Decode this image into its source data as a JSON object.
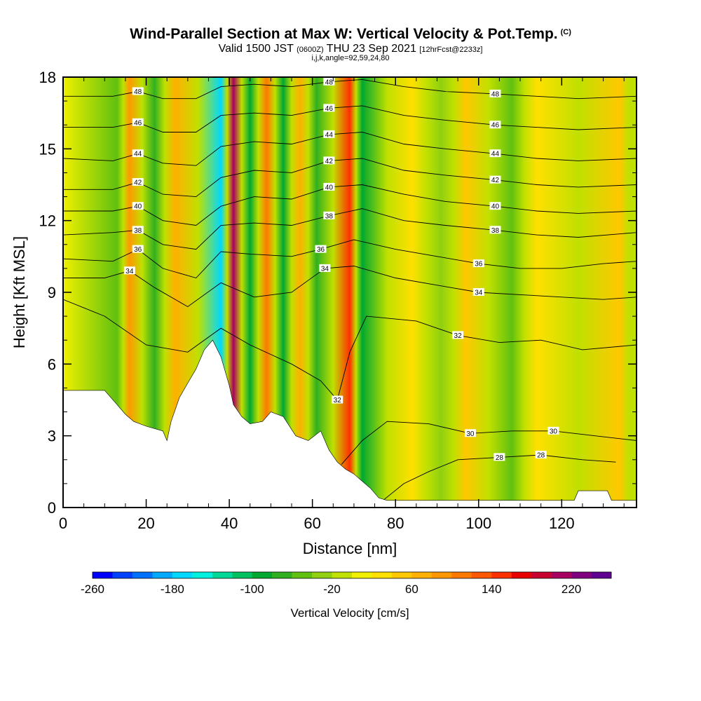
{
  "title": {
    "main": "Wind-Parallel Section at Max W: Vertical Velocity & Pot.Temp.",
    "mark": "(C)",
    "valid_pre": "Valid 1500 JST ",
    "valid_utc": "(0600Z)",
    "valid_post": " THU 23 Sep 2021 ",
    "forecast": "[12hrFcst@2233z]",
    "indices": "i,j,k,angle=92,59,24,80"
  },
  "chart_data": {
    "type": "heatmap",
    "xlabel": "Distance [nm]",
    "ylabel": "Height [Kft MSL]",
    "xlim": [
      0,
      138
    ],
    "ylim": [
      0,
      18
    ],
    "x_ticks": [
      "0",
      "20",
      "40",
      "60",
      "80",
      "100",
      "120"
    ],
    "y_ticks": [
      "0",
      "3",
      "6",
      "9",
      "12",
      "15",
      "18"
    ],
    "colorbar": {
      "label": "Vertical Velocity [cm/s]",
      "range": [
        -260,
        260
      ],
      "ticks": [
        "-260",
        "-180",
        "-100",
        "-20",
        "60",
        "140",
        "220"
      ],
      "colors": [
        "#0000ff",
        "#0040ff",
        "#0070ff",
        "#00a8ff",
        "#00d8ff",
        "#00f0e0",
        "#00d898",
        "#00c060",
        "#00a830",
        "#30b020",
        "#60c010",
        "#90d010",
        "#c0e000",
        "#f0f000",
        "#ffe000",
        "#ffc800",
        "#ffb000",
        "#ff9800",
        "#ff7800",
        "#ff5800",
        "#ff3000",
        "#e80000",
        "#c80030",
        "#a80060",
        "#800080",
        "#600090"
      ]
    },
    "terrain_kft": [
      [
        0,
        4.9
      ],
      [
        10,
        4.9
      ],
      [
        13,
        4.3
      ],
      [
        15,
        3.9
      ],
      [
        17,
        3.6
      ],
      [
        20,
        3.4
      ],
      [
        24,
        3.2
      ],
      [
        25,
        2.8
      ],
      [
        26,
        3.6
      ],
      [
        28,
        4.6
      ],
      [
        30,
        5.2
      ],
      [
        32,
        5.8
      ],
      [
        34,
        6.6
      ],
      [
        36,
        7.0
      ],
      [
        38,
        6.3
      ],
      [
        40,
        5.1
      ],
      [
        41,
        4.3
      ],
      [
        43,
        3.8
      ],
      [
        45,
        3.5
      ],
      [
        48,
        3.6
      ],
      [
        50,
        4.0
      ],
      [
        53,
        3.8
      ],
      [
        56,
        3.0
      ],
      [
        59,
        2.8
      ],
      [
        62,
        3.2
      ],
      [
        64,
        2.4
      ],
      [
        66,
        1.9
      ],
      [
        68,
        1.6
      ],
      [
        70,
        1.4
      ],
      [
        72,
        1.1
      ],
      [
        74,
        0.8
      ],
      [
        76,
        0.4
      ],
      [
        78,
        0.3
      ],
      [
        123,
        0.3
      ],
      [
        124,
        0.7
      ],
      [
        131,
        0.7
      ],
      [
        132,
        0.3
      ],
      [
        138,
        0.3
      ]
    ],
    "updrafts": [
      {
        "x": 16,
        "w": 90
      },
      {
        "x": 27,
        "w": 60
      },
      {
        "x": 41,
        "w": 200
      },
      {
        "x": 49,
        "w": 110
      },
      {
        "x": 57,
        "w": 70
      },
      {
        "x": 69,
        "w": 140
      },
      {
        "x": 84,
        "w": 40
      },
      {
        "x": 97,
        "w": 50
      },
      {
        "x": 114,
        "w": 40
      },
      {
        "x": 134,
        "w": 50
      }
    ],
    "downdrafts": [
      {
        "x": 13,
        "w": -60
      },
      {
        "x": 22,
        "w": -70
      },
      {
        "x": 38,
        "w": -180
      },
      {
        "x": 45,
        "w": -90
      },
      {
        "x": 53,
        "w": -100
      },
      {
        "x": 61,
        "w": -80
      },
      {
        "x": 72,
        "w": -100
      },
      {
        "x": 91,
        "w": -40
      },
      {
        "x": 108,
        "w": -50
      }
    ],
    "theta_contours": [
      {
        "label": "28",
        "points": [
          [
            77,
            0.3
          ],
          [
            82,
            1.0
          ],
          [
            88,
            1.5
          ],
          [
            95,
            2.0
          ],
          [
            105,
            2.1
          ],
          [
            115,
            2.2
          ],
          [
            125,
            2.0
          ],
          [
            133,
            1.9
          ]
        ]
      },
      {
        "label": "30",
        "points": [
          [
            67,
            1.8
          ],
          [
            72,
            2.8
          ],
          [
            78,
            3.6
          ],
          [
            88,
            3.5
          ],
          [
            98,
            3.1
          ],
          [
            108,
            3.2
          ],
          [
            118,
            3.2
          ],
          [
            128,
            3.0
          ],
          [
            138,
            2.8
          ]
        ]
      },
      {
        "label": "32",
        "points": [
          [
            0,
            8.7
          ],
          [
            10,
            8.0
          ],
          [
            20,
            6.8
          ],
          [
            30,
            6.5
          ],
          [
            38,
            7.5
          ],
          [
            45,
            6.8
          ],
          [
            55,
            6.0
          ],
          [
            62,
            5.3
          ],
          [
            66,
            4.5
          ],
          [
            69,
            6.5
          ],
          [
            73,
            8.0
          ],
          [
            85,
            7.8
          ],
          [
            95,
            7.2
          ],
          [
            105,
            6.9
          ],
          [
            115,
            7.0
          ],
          [
            125,
            6.6
          ],
          [
            138,
            6.8
          ]
        ]
      },
      {
        "label": "34",
        "points": [
          [
            0,
            9.6
          ],
          [
            10,
            9.6
          ],
          [
            16,
            9.9
          ],
          [
            22,
            9.2
          ],
          [
            30,
            8.4
          ],
          [
            38,
            9.4
          ],
          [
            46,
            8.8
          ],
          [
            55,
            9.0
          ],
          [
            63,
            10.0
          ],
          [
            70,
            10.1
          ],
          [
            80,
            9.6
          ],
          [
            90,
            9.3
          ],
          [
            100,
            9.0
          ],
          [
            110,
            8.9
          ],
          [
            120,
            8.8
          ],
          [
            130,
            8.7
          ],
          [
            138,
            8.8
          ]
        ]
      },
      {
        "label": "36",
        "points": [
          [
            0,
            10.4
          ],
          [
            12,
            10.3
          ],
          [
            18,
            10.8
          ],
          [
            24,
            10.0
          ],
          [
            32,
            9.6
          ],
          [
            38,
            10.7
          ],
          [
            45,
            10.6
          ],
          [
            55,
            10.5
          ],
          [
            62,
            10.8
          ],
          [
            70,
            11.2
          ],
          [
            80,
            10.8
          ],
          [
            90,
            10.5
          ],
          [
            100,
            10.2
          ],
          [
            110,
            10.0
          ],
          [
            120,
            10.0
          ],
          [
            130,
            10.2
          ],
          [
            138,
            10.3
          ]
        ]
      },
      {
        "label": "38",
        "points": [
          [
            0,
            11.4
          ],
          [
            12,
            11.5
          ],
          [
            18,
            11.6
          ],
          [
            24,
            11.0
          ],
          [
            32,
            10.8
          ],
          [
            38,
            11.8
          ],
          [
            46,
            11.9
          ],
          [
            55,
            11.8
          ],
          [
            64,
            12.2
          ],
          [
            72,
            12.5
          ],
          [
            82,
            12.0
          ],
          [
            92,
            11.8
          ],
          [
            104,
            11.6
          ],
          [
            114,
            11.4
          ],
          [
            124,
            11.3
          ],
          [
            138,
            11.5
          ]
        ]
      },
      {
        "label": "40",
        "points": [
          [
            0,
            12.4
          ],
          [
            12,
            12.4
          ],
          [
            18,
            12.6
          ],
          [
            24,
            12.0
          ],
          [
            32,
            11.8
          ],
          [
            38,
            12.6
          ],
          [
            46,
            13.0
          ],
          [
            55,
            12.9
          ],
          [
            64,
            13.4
          ],
          [
            72,
            13.5
          ],
          [
            82,
            13.1
          ],
          [
            92,
            12.8
          ],
          [
            104,
            12.6
          ],
          [
            114,
            12.4
          ],
          [
            124,
            12.3
          ],
          [
            138,
            12.4
          ]
        ]
      },
      {
        "label": "42",
        "points": [
          [
            0,
            13.3
          ],
          [
            12,
            13.3
          ],
          [
            18,
            13.6
          ],
          [
            24,
            13.1
          ],
          [
            32,
            13.0
          ],
          [
            38,
            13.8
          ],
          [
            46,
            14.1
          ],
          [
            55,
            14.0
          ],
          [
            64,
            14.5
          ],
          [
            72,
            14.6
          ],
          [
            82,
            14.1
          ],
          [
            92,
            13.9
          ],
          [
            104,
            13.7
          ],
          [
            114,
            13.5
          ],
          [
            124,
            13.4
          ],
          [
            138,
            13.5
          ]
        ]
      },
      {
        "label": "44",
        "points": [
          [
            0,
            14.6
          ],
          [
            12,
            14.5
          ],
          [
            18,
            14.8
          ],
          [
            24,
            14.4
          ],
          [
            32,
            14.3
          ],
          [
            38,
            15.1
          ],
          [
            46,
            15.3
          ],
          [
            55,
            15.2
          ],
          [
            64,
            15.6
          ],
          [
            72,
            15.7
          ],
          [
            82,
            15.2
          ],
          [
            92,
            15.0
          ],
          [
            104,
            14.8
          ],
          [
            114,
            14.6
          ],
          [
            124,
            14.5
          ],
          [
            138,
            14.6
          ]
        ]
      },
      {
        "label": "46",
        "points": [
          [
            0,
            15.9
          ],
          [
            12,
            15.9
          ],
          [
            18,
            16.1
          ],
          [
            24,
            15.7
          ],
          [
            32,
            15.7
          ],
          [
            38,
            16.4
          ],
          [
            46,
            16.5
          ],
          [
            55,
            16.4
          ],
          [
            64,
            16.7
          ],
          [
            72,
            16.8
          ],
          [
            82,
            16.4
          ],
          [
            92,
            16.2
          ],
          [
            104,
            16.0
          ],
          [
            114,
            15.9
          ],
          [
            124,
            15.8
          ],
          [
            138,
            15.9
          ]
        ]
      },
      {
        "label": "48",
        "points": [
          [
            0,
            17.2
          ],
          [
            12,
            17.2
          ],
          [
            18,
            17.4
          ],
          [
            24,
            17.1
          ],
          [
            32,
            17.1
          ],
          [
            38,
            17.6
          ],
          [
            46,
            17.7
          ],
          [
            55,
            17.6
          ],
          [
            64,
            17.8
          ],
          [
            72,
            17.9
          ],
          [
            82,
            17.6
          ],
          [
            92,
            17.4
          ],
          [
            104,
            17.3
          ],
          [
            114,
            17.2
          ],
          [
            124,
            17.1
          ],
          [
            138,
            17.2
          ]
        ]
      }
    ]
  }
}
